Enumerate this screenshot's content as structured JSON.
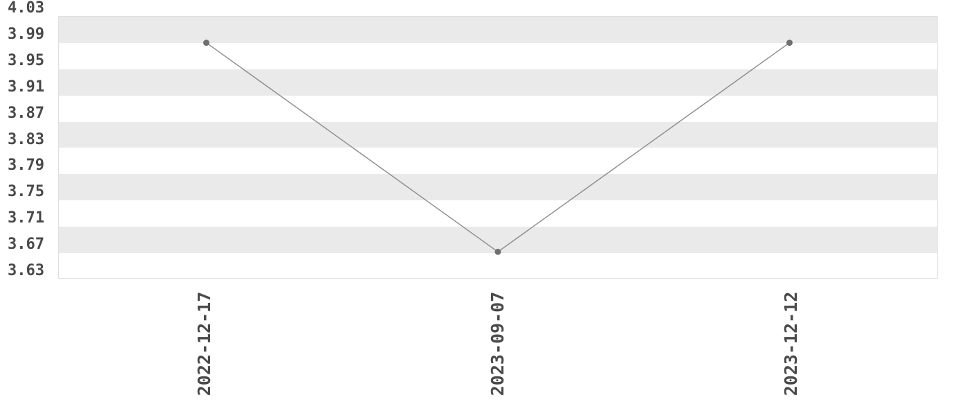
{
  "chart_data": {
    "type": "line",
    "title": "",
    "xlabel": "",
    "ylabel": "",
    "legend": "none",
    "categories": [
      "2022-12-17",
      "2023-09-07",
      "2023-12-12"
    ],
    "values": [
      3.99,
      3.67,
      3.99
    ],
    "y_ticks": [
      "4.03",
      "3.99",
      "3.95",
      "3.91",
      "3.87",
      "3.83",
      "3.79",
      "3.75",
      "3.71",
      "3.67",
      "3.63"
    ],
    "ylim": [
      3.63,
      4.03
    ],
    "y_tick_step": 0.04,
    "grid": "alternating-horizontal-stripes",
    "colors": {
      "background": "#ffffff",
      "stripe": "#eaeaea",
      "plot_border": "#dcdcdc",
      "line": "#8f8f8f",
      "point": "#6f6f6f",
      "tick_text": "#4a4a4a"
    }
  }
}
